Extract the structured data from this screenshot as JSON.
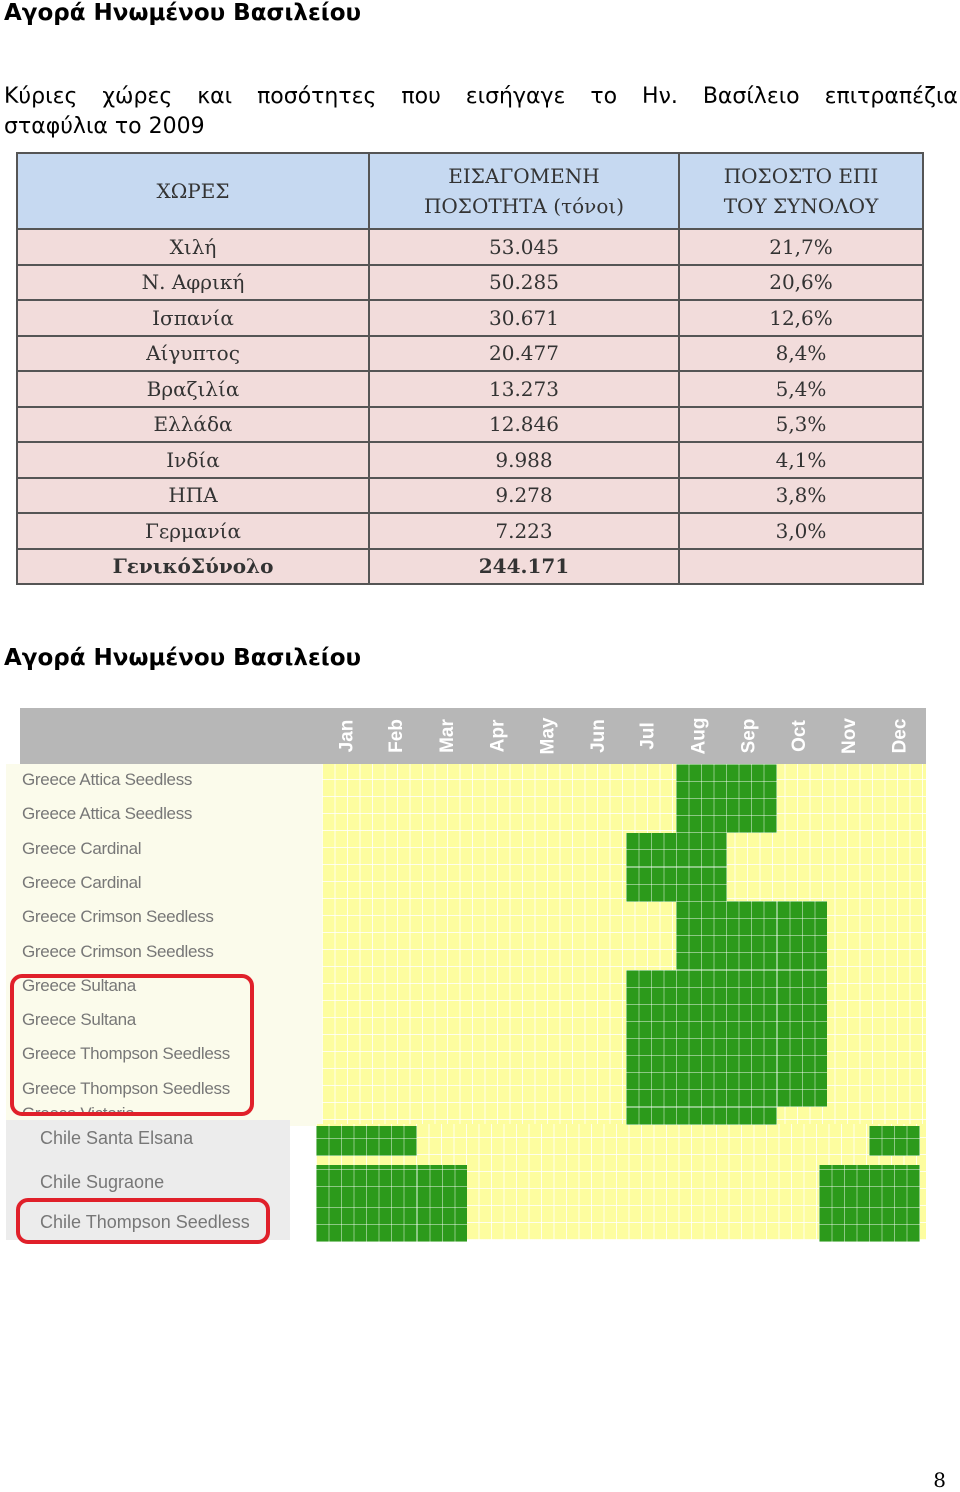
{
  "heading_top": "Αγορά Ηνωμένου Βασιλείου",
  "intro": {
    "line1_words": [
      "Κύριες",
      "χώρες",
      "και",
      "ποσότητες",
      "που",
      "εισήγαγε",
      "το",
      "Ην.",
      "Βασίλειο",
      "επιτραπέζια"
    ],
    "line2": "σταφύλια το 2009"
  },
  "import_table": {
    "headers": [
      "ΧΩΡΕΣ",
      "ΕΙΣΑΓΟΜΕΝΗ ΠΟΣΟΤΗΤΑ (τόνοι)",
      "ΠΟΣΟΣΤΟ ΕΠΙ ΤΟΥ ΣΥΝΟΛΟΥ"
    ],
    "header_lines": [
      [
        "ΧΩΡΕΣ"
      ],
      [
        "ΕΙΣΑΓΟΜΕΝΗ",
        "ΠΟΣΟΤΗΤΑ (τόνοι)"
      ],
      [
        "ΠΟΣΟΣΤΟ ΕΠΙ",
        "ΤΟΥ ΣΥΝΟΛΟΥ"
      ]
    ],
    "rows": [
      [
        "Χιλή",
        "53.045",
        "21,7%"
      ],
      [
        "Ν. Αφρική",
        "50.285",
        "20,6%"
      ],
      [
        "Ισπανία",
        "30.671",
        "12,6%"
      ],
      [
        "Αίγυπτος",
        "20.477",
        "8,4%"
      ],
      [
        "Βραζιλία",
        "13.273",
        "5,4%"
      ],
      [
        "Ελλάδα",
        "12.846",
        "5,3%"
      ],
      [
        "Ινδία",
        "9.988",
        "4,1%"
      ],
      [
        "ΗΠΑ",
        "9.278",
        "3,8%"
      ],
      [
        "Γερμανία",
        "7.223",
        "3,0%"
      ],
      [
        "ΓενικόΣύνολο",
        "244.171",
        ""
      ]
    ]
  },
  "heading_second": "Αγορά Ηνωμένου Βασιλείου",
  "calendar": {
    "months": [
      "Jan",
      "Feb",
      "Mar",
      "Apr",
      "May",
      "Jun",
      "Jul",
      "Aug",
      "Sep",
      "Oct",
      "Nov",
      "Dec"
    ],
    "greece_rows": [
      {
        "label": "Greece Attica Seedless",
        "active_months": [
          "Aug",
          "Sep"
        ]
      },
      {
        "label": "Greece Attica Seedless",
        "active_months": [
          "Aug",
          "Sep"
        ]
      },
      {
        "label": "Greece Cardinal",
        "active_months": [
          "Jul",
          "Aug"
        ]
      },
      {
        "label": "Greece Cardinal",
        "active_months": [
          "Jul",
          "Aug"
        ]
      },
      {
        "label": "Greece Crimson Seedless",
        "active_months": [
          "Aug",
          "Sep",
          "Oct"
        ]
      },
      {
        "label": "Greece Crimson Seedless",
        "active_months": [
          "Aug",
          "Sep",
          "Oct"
        ]
      },
      {
        "label": "Greece Sultana",
        "active_months": [
          "Jul",
          "Aug",
          "Sep",
          "Oct"
        ]
      },
      {
        "label": "Greece Sultana",
        "active_months": [
          "Jul",
          "Aug",
          "Sep",
          "Oct"
        ]
      },
      {
        "label": "Greece Thompson Seedless",
        "active_months": [
          "Jul",
          "Aug",
          "Sep",
          "Oct"
        ]
      },
      {
        "label": "Greece Thompson Seedless",
        "active_months": [
          "Jul",
          "Aug",
          "Sep",
          "Oct"
        ]
      },
      {
        "label": "Greece Victoria",
        "active_months": [
          "Jul",
          "Aug",
          "Sep"
        ]
      }
    ],
    "chile_rows": [
      {
        "label": "Chile Santa Elsana",
        "active_months": [
          "Jan",
          "Feb",
          "Dec"
        ]
      },
      {
        "label": "Chile Sugraone",
        "active_months": [
          "Jan",
          "Feb",
          "Mar",
          "Nov",
          "Dec"
        ]
      },
      {
        "label": "Chile Thompson Seedless",
        "active_months": [
          "Jan",
          "Feb",
          "Mar",
          "Nov",
          "Dec"
        ]
      }
    ],
    "colors": {
      "active": "#2c9a1b",
      "inactive": "#fdfd9f",
      "header": "#b7b7b7",
      "highlight": "#e0202a"
    }
  },
  "page_number": "8"
}
